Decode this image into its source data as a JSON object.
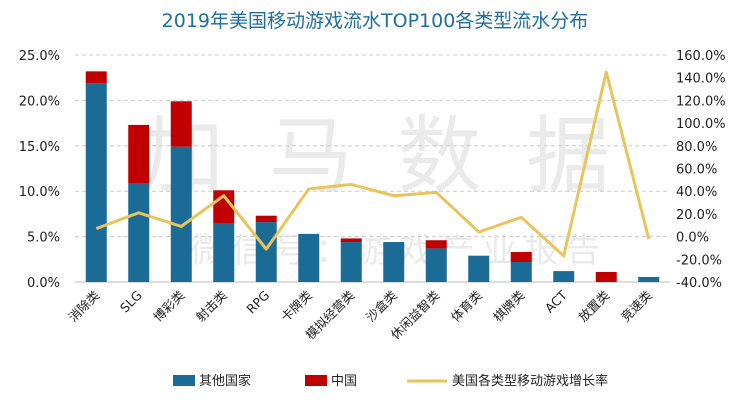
{
  "chart_data": {
    "type": "bar",
    "title": "2019年美国移动游戏流水TOP100各类型流水分布",
    "categories": [
      "消除类",
      "SLG",
      "博彩类",
      "射击类",
      "RPG",
      "卡牌类",
      "模拟经营类",
      "沙盒类",
      "休闲益智类",
      "体育类",
      "棋牌类",
      "ACT",
      "放置类",
      "竞速类"
    ],
    "series": [
      {
        "name": "其他国家",
        "kind": "stacked-bar",
        "axis": "left",
        "color": "#1b6b97",
        "values": [
          21.9,
          10.9,
          14.9,
          6.5,
          6.6,
          5.3,
          4.4,
          4.4,
          3.7,
          2.9,
          2.2,
          1.2,
          0.0,
          0.55
        ]
      },
      {
        "name": "中国",
        "kind": "stacked-bar",
        "axis": "left",
        "color": "#c00000",
        "values": [
          1.3,
          6.4,
          5.0,
          3.6,
          0.7,
          0.0,
          0.4,
          0.0,
          0.9,
          0.0,
          1.1,
          0.0,
          1.1,
          0.0
        ]
      },
      {
        "name": "美国各类型移动游戏增长率",
        "kind": "line",
        "axis": "right",
        "color": "#e8c45a",
        "values": [
          7,
          21,
          9,
          36,
          -11,
          42,
          46,
          36,
          39,
          4,
          17,
          -17,
          145,
          -2
        ]
      }
    ],
    "left_axis": {
      "min": 0,
      "max": 25,
      "step": 5,
      "ticks": [
        "0.0%",
        "5.0%",
        "10.0%",
        "15.0%",
        "20.0%",
        "25.0%"
      ]
    },
    "right_axis": {
      "min": -40,
      "max": 160,
      "step": 20,
      "ticks": [
        "-40.0%",
        "-20.0%",
        "0.0%",
        "20.0%",
        "40.0%",
        "60.0%",
        "80.0%",
        "100.0%",
        "120.0%",
        "140.0%",
        "160.0%"
      ]
    },
    "grid": true,
    "legend_position": "bottom"
  },
  "watermark": {
    "main": "加马数据",
    "sub": "微信号：游戏产业报告"
  }
}
